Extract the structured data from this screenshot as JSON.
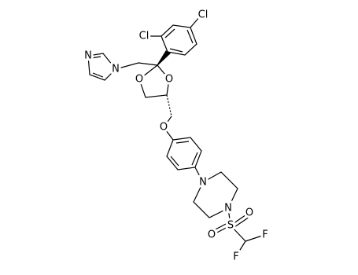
{
  "atoms": [
    {
      "label": "Cl"
    },
    {
      "label": "Cl"
    },
    {
      "label": "N"
    },
    {
      "label": "N"
    },
    {
      "label": "O"
    },
    {
      "label": "O"
    },
    {
      "label": "O"
    },
    {
      "label": "N"
    },
    {
      "label": "N"
    },
    {
      "label": "S"
    },
    {
      "label": "O"
    },
    {
      "label": "O"
    },
    {
      "label": "F"
    },
    {
      "label": "F"
    }
  ]
}
